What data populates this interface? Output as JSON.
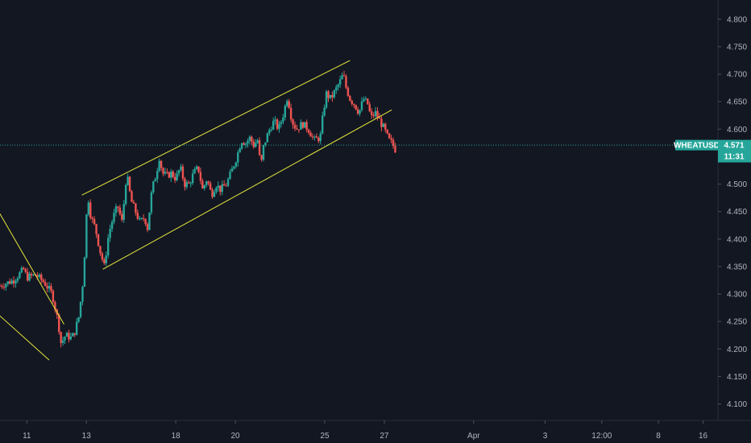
{
  "chart_data": {
    "type": "candlestick",
    "symbol": "WHEATUSD",
    "last_price": "4.571",
    "countdown": "11:31",
    "ylim": [
      4.07,
      4.835
    ],
    "y_ticks": [
      "4.800",
      "4.750",
      "4.700",
      "4.650",
      "4.600",
      "4.550",
      "4.500",
      "4.450",
      "4.400",
      "4.350",
      "4.300",
      "4.250",
      "4.200",
      "4.150",
      "4.100"
    ],
    "x_ticks": [
      {
        "label": "11",
        "t": 0
      },
      {
        "label": "13",
        "t": 2
      },
      {
        "label": "18",
        "t": 5
      },
      {
        "label": "20",
        "t": 7
      },
      {
        "label": "25",
        "t": 10
      },
      {
        "label": "27",
        "t": 12
      },
      {
        "label": "Apr",
        "t": 15
      },
      {
        "label": "3",
        "t": 17.4
      },
      {
        "label": "12:00",
        "t": 19.3
      },
      {
        "label": "8",
        "t": 21.2
      },
      {
        "label": "16",
        "t": 22.7
      }
    ],
    "x_range": [
      -0.9,
      23.2
    ],
    "price_path": [
      [
        -0.9,
        4.315
      ],
      [
        -0.45,
        4.325
      ],
      [
        -0.1,
        4.345
      ],
      [
        0.0,
        4.33
      ],
      [
        0.3,
        4.335
      ],
      [
        0.6,
        4.32
      ],
      [
        0.85,
        4.3
      ],
      [
        1.05,
        4.25
      ],
      [
        1.15,
        4.21
      ],
      [
        1.3,
        4.225
      ],
      [
        1.5,
        4.22
      ],
      [
        1.6,
        4.23
      ],
      [
        1.75,
        4.26
      ],
      [
        1.9,
        4.33
      ],
      [
        2.0,
        4.44
      ],
      [
        2.05,
        4.48
      ],
      [
        2.15,
        4.44
      ],
      [
        2.3,
        4.42
      ],
      [
        2.45,
        4.38
      ],
      [
        2.6,
        4.35
      ],
      [
        2.75,
        4.41
      ],
      [
        2.9,
        4.44
      ],
      [
        3.05,
        4.46
      ],
      [
        3.2,
        4.43
      ],
      [
        3.35,
        4.52
      ],
      [
        3.5,
        4.47
      ],
      [
        3.65,
        4.45
      ],
      [
        3.8,
        4.43
      ],
      [
        3.95,
        4.44
      ],
      [
        4.05,
        4.42
      ],
      [
        4.2,
        4.49
      ],
      [
        4.35,
        4.52
      ],
      [
        4.45,
        4.55
      ],
      [
        4.55,
        4.52
      ],
      [
        4.7,
        4.515
      ],
      [
        4.85,
        4.52
      ],
      [
        5.0,
        4.51
      ],
      [
        5.15,
        4.53
      ],
      [
        5.3,
        4.5
      ],
      [
        5.45,
        4.5
      ],
      [
        5.6,
        4.52
      ],
      [
        5.75,
        4.53
      ],
      [
        5.9,
        4.49
      ],
      [
        6.05,
        4.51
      ],
      [
        6.2,
        4.48
      ],
      [
        6.35,
        4.5
      ],
      [
        6.5,
        4.49
      ],
      [
        6.7,
        4.5
      ],
      [
        6.85,
        4.52
      ],
      [
        7.05,
        4.55
      ],
      [
        7.2,
        4.58
      ],
      [
        7.35,
        4.575
      ],
      [
        7.5,
        4.585
      ],
      [
        7.6,
        4.57
      ],
      [
        7.75,
        4.58
      ],
      [
        7.85,
        4.53
      ],
      [
        7.95,
        4.57
      ],
      [
        8.15,
        4.6
      ],
      [
        8.3,
        4.615
      ],
      [
        8.45,
        4.6
      ],
      [
        8.6,
        4.625
      ],
      [
        8.75,
        4.66
      ],
      [
        8.9,
        4.615
      ],
      [
        9.05,
        4.6
      ],
      [
        9.25,
        4.61
      ],
      [
        9.45,
        4.6
      ],
      [
        9.65,
        4.58
      ],
      [
        9.85,
        4.585
      ],
      [
        9.95,
        4.63
      ],
      [
        10.05,
        4.665
      ],
      [
        10.2,
        4.655
      ],
      [
        10.35,
        4.67
      ],
      [
        10.5,
        4.685
      ],
      [
        10.62,
        4.7
      ],
      [
        10.72,
        4.675
      ],
      [
        10.85,
        4.655
      ],
      [
        11.0,
        4.645
      ],
      [
        11.15,
        4.63
      ],
      [
        11.3,
        4.655
      ],
      [
        11.45,
        4.645
      ],
      [
        11.55,
        4.62
      ],
      [
        11.7,
        4.63
      ],
      [
        11.85,
        4.615
      ],
      [
        12.0,
        4.6
      ],
      [
        12.15,
        4.58
      ],
      [
        12.25,
        4.575
      ],
      [
        12.4,
        4.56
      ]
    ],
    "trend_lines": [
      {
        "from": [
          -1.0,
          4.455
        ],
        "to": [
          1.25,
          4.245
        ]
      },
      {
        "from": [
          -1.0,
          4.265
        ],
        "to": [
          0.75,
          4.18
        ]
      },
      {
        "from": [
          1.85,
          4.48
        ],
        "to": [
          10.85,
          4.725
        ]
      },
      {
        "from": [
          2.55,
          4.345
        ],
        "to": [
          12.25,
          4.635
        ]
      }
    ]
  }
}
